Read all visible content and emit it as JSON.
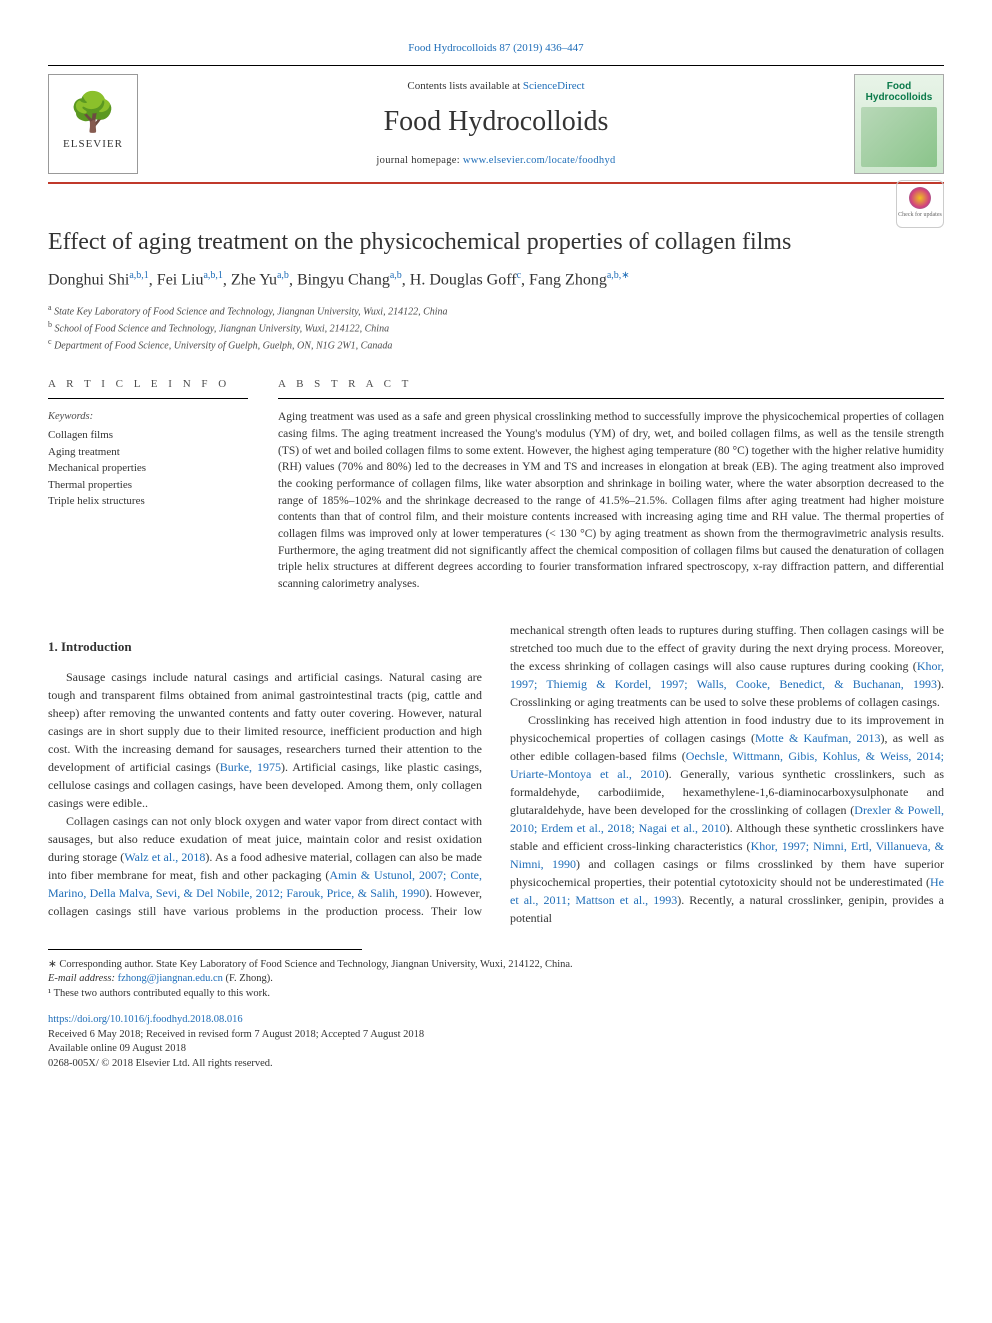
{
  "top_link": "Food Hydrocolloids 87 (2019) 436–447",
  "header": {
    "contents_prefix": "Contents lists available at ",
    "contents_link_text": "ScienceDirect",
    "journal_name": "Food Hydrocolloids",
    "homepage_prefix": "journal homepage: ",
    "homepage_link_text": "www.elsevier.com/locate/foodhyd",
    "publisher_name": "ELSEVIER",
    "cover_title_line1": "Food",
    "cover_title_line2": "Hydrocolloids"
  },
  "check_updates_label": "Check for updates",
  "title": "Effect of aging treatment on the physicochemical properties of collagen films",
  "authors_html": "Donghui Shi<sup>a,b,1</sup>, Fei Liu<sup>a,b,1</sup>, Zhe Yu<sup>a,b</sup>, Bingyu Chang<sup>a,b</sup>, H. Douglas Goff<sup>c</sup>, Fang Zhong<sup>a,b,∗</sup>",
  "affiliations": [
    {
      "sup": "a",
      "text": "State Key Laboratory of Food Science and Technology, Jiangnan University, Wuxi, 214122, China"
    },
    {
      "sup": "b",
      "text": "School of Food Science and Technology, Jiangnan University, Wuxi, 214122, China"
    },
    {
      "sup": "c",
      "text": "Department of Food Science, University of Guelph, Guelph, ON, N1G 2W1, Canada"
    }
  ],
  "article_info_heading": "A R T I C L E  I N F O",
  "keywords_label": "Keywords:",
  "keywords": [
    "Collagen films",
    "Aging treatment",
    "Mechanical properties",
    "Thermal properties",
    "Triple helix structures"
  ],
  "abstract_heading": "A B S T R A C T",
  "abstract": "Aging treatment was used as a safe and green physical crosslinking method to successfully improve the physicochemical properties of collagen casing films. The aging treatment increased the Young's modulus (YM) of dry, wet, and boiled collagen films, as well as the tensile strength (TS) of wet and boiled collagen films to some extent. However, the highest aging temperature (80 °C) together with the higher relative humidity (RH) values (70% and 80%) led to the decreases in YM and TS and increases in elongation at break (EB). The aging treatment also improved the cooking performance of collagen films, like water absorption and shrinkage in boiling water, where the water absorption decreased to the range of 185%–102% and the shrinkage decreased to the range of 41.5%–21.5%. Collagen films after aging treatment had higher moisture contents than that of control film, and their moisture contents increased with increasing aging time and RH value. The thermal properties of collagen films was improved only at lower temperatures (< 130 °C) by aging treatment as shown from the thermogravimetric analysis results. Furthermore, the aging treatment did not significantly affect the chemical composition of collagen films but caused the denaturation of collagen triple helix structures at different degrees according to fourier transformation infrared spectroscopy, x-ray diffraction pattern, and differential scanning calorimetry analyses.",
  "intro_heading": "1. Introduction",
  "intro_paragraphs": [
    "Sausage casings include natural casings and artificial casings. Natural casing are tough and transparent films obtained from animal gastrointestinal tracts (pig, cattle and sheep) after removing the unwanted contents and fatty outer covering. However, natural casings are in short supply due to their limited resource, inefficient production and high cost. With the increasing demand for sausages, researchers turned their attention to the development of artificial casings (<a>Burke, 1975</a>). Artificial casings, like plastic casings, cellulose casings and collagen casings, have been developed. Among them, only collagen casings were edible..",
    "Collagen casings can not only block oxygen and water vapor from direct contact with sausages, but also reduce exudation of meat juice, maintain color and resist oxidation during storage (<a>Walz et al., 2018</a>). As a food adhesive material, collagen can also be made into fiber membrane for meat, fish and other packaging (<a>Amin & Ustunol, 2007; Conte, Marino, Della Malva, Sevi, & Del Nobile, 2012; Farouk, Price, & Salih, 1990</a>). However, collagen casings still have various problems in the production process. Their low mechanical strength often leads to ruptures during stuffing. Then collagen casings will be stretched too much due to the effect of gravity during the next drying process. Moreover, the excess shrinking of collagen casings will also cause ruptures during cooking (<a>Khor, 1997; Thiemig & Kordel, 1997; Walls, Cooke, Benedict, & Buchanan, 1993</a>). Crosslinking or aging treatments can be used to solve these problems of collagen casings.",
    "Crosslinking has received high attention in food industry due to its improvement in physicochemical properties of collagen casings (<a>Motte & Kaufman, 2013</a>), as well as other edible collagen-based films (<a>Oechsle, Wittmann, Gibis, Kohlus, & Weiss, 2014; Uriarte-Montoya et al., 2010</a>). Generally, various synthetic crosslinkers, such as formaldehyde, carbodiimide, hexamethylene-1,6-diaminocarboxysulphonate and glutaraldehyde, have been developed for the crosslinking of collagen (<a>Drexler & Powell, 2010; Erdem et al., 2018; Nagai et al., 2010</a>). Although these synthetic crosslinkers have stable and efficient cross-linking characteristics (<a>Khor, 1997; Nimni, Ertl, Villanueva, & Nimni, 1990</a>) and collagen casings or films crosslinked by them have superior physicochemical properties, their potential cytotoxicity should not be underestimated (<a>He et al., 2011; Mattson et al., 1993</a>). Recently, a natural crosslinker, genipin, provides a potential"
  ],
  "footnotes": {
    "corresponding": "∗ Corresponding author. State Key Laboratory of Food Science and Technology, Jiangnan University, Wuxi, 214122, China.",
    "email_label": "E-mail address: ",
    "email_value": "fzhong@jiangnan.edu.cn",
    "email_suffix": " (F. Zhong).",
    "equal": "¹ These two authors contributed equally to this work."
  },
  "doi": "https://doi.org/10.1016/j.foodhyd.2018.08.016",
  "history": [
    "Received 6 May 2018; Received in revised form 7 August 2018; Accepted 7 August 2018",
    "Available online 09 August 2018",
    "0268-005X/ © 2018 Elsevier Ltd. All rights reserved."
  ],
  "colors": {
    "link": "#1e6db8",
    "accent_rule": "#c0392b",
    "cover_green": "#0a7a4a"
  },
  "typography": {
    "title_fontsize_pt": 18,
    "journal_name_fontsize_pt": 21,
    "body_fontsize_pt": 9,
    "abstract_fontsize_pt": 8.6,
    "font_family": "Georgia, serif"
  }
}
